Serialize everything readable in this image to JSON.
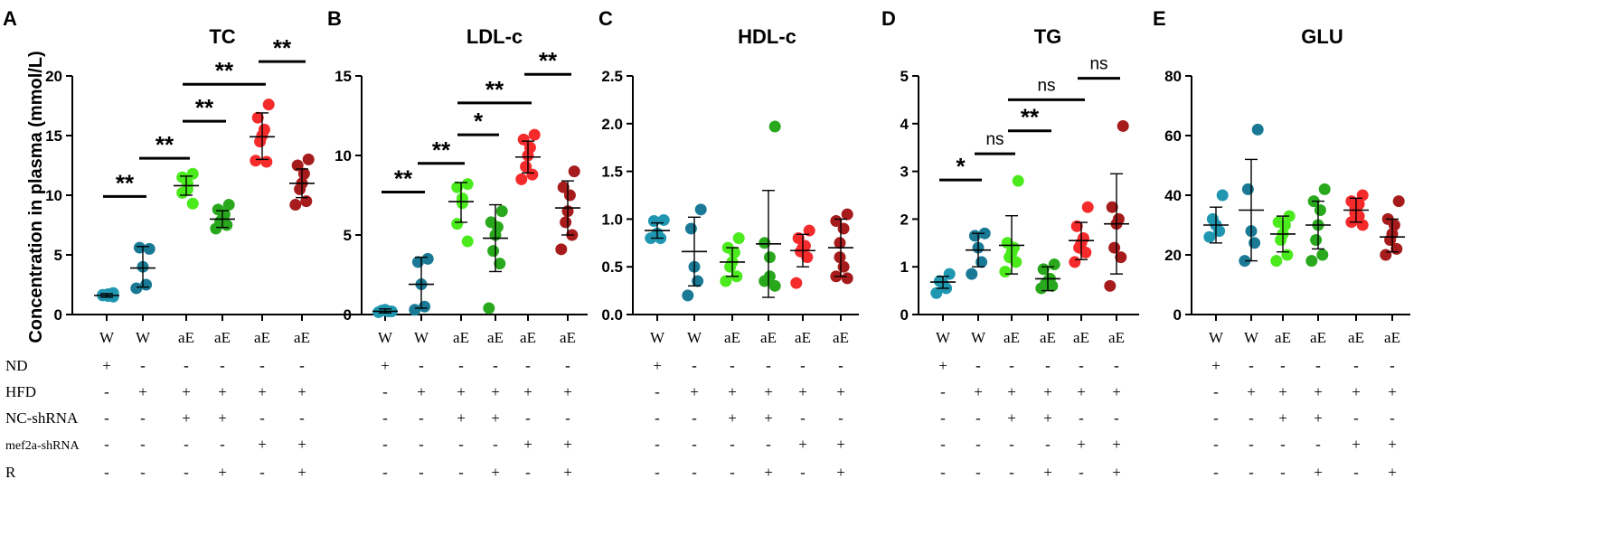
{
  "ylabel": "Concentration in plasma (mmol/L)",
  "categories": [
    "W",
    "W",
    "aE",
    "aE",
    "aE",
    "aE"
  ],
  "colors": [
    "#1f97b1",
    "#1a7a95",
    "#4aea1d",
    "#29a81d",
    "#f52a2a",
    "#a61c1c"
  ],
  "treatment_rows": [
    {
      "label": "ND",
      "symbols": [
        "+",
        "-",
        "-",
        "-",
        "-",
        "-"
      ]
    },
    {
      "label": "HFD",
      "symbols": [
        "-",
        "+",
        "+",
        "+",
        "+",
        "+"
      ]
    },
    {
      "label": "NC-shRNA",
      "symbols": [
        "-",
        "-",
        "+",
        "+",
        "-",
        "-"
      ]
    },
    {
      "label": "mef2a-shRNA",
      "symbols": [
        "-",
        "-",
        "-",
        "-",
        "+",
        "+"
      ]
    },
    {
      "label": "R",
      "symbols": [
        "-",
        "-",
        "-",
        "+",
        "-",
        "+"
      ]
    }
  ],
  "chart_data": [
    {
      "letter": "A",
      "title": "TC",
      "type": "scatter",
      "ylim": [
        0,
        20
      ],
      "yticks": [
        "0",
        "5",
        "10",
        "15",
        "20"
      ],
      "series": [
        {
          "name": "W ND",
          "points": [
            1.5,
            1.6,
            1.7,
            1.55,
            1.65,
            1.8
          ],
          "mean": 1.6,
          "sd": [
            1.45,
            1.75
          ]
        },
        {
          "name": "W HFD",
          "points": [
            5.5,
            5.6,
            4.0,
            2.5,
            2.2
          ],
          "mean": 3.9,
          "sd": [
            2.3,
            5.7
          ]
        },
        {
          "name": "aE NC-shRNA",
          "points": [
            11.8,
            11.5,
            11.0,
            10.5,
            10.2,
            9.3
          ],
          "mean": 10.8,
          "sd": [
            10.0,
            11.6
          ]
        },
        {
          "name": "aE NC-shRNA R",
          "points": [
            9.2,
            8.8,
            8.4,
            8.0,
            7.8,
            7.5,
            7.2
          ],
          "mean": 8.0,
          "sd": [
            7.3,
            8.7
          ]
        },
        {
          "name": "aE mef2a-shRNA",
          "points": [
            17.6,
            16.5,
            15.5,
            15.0,
            14.5,
            12.8,
            12.9
          ],
          "mean": 14.9,
          "sd": [
            13.0,
            16.9
          ]
        },
        {
          "name": "aE mef2a-shRNA R",
          "points": [
            13.0,
            12.5,
            11.8,
            11.0,
            10.5,
            9.5,
            9.2
          ],
          "mean": 11.0,
          "sd": [
            9.8,
            12.2
          ]
        }
      ],
      "comparisons": [
        {
          "from": 0,
          "to": 1,
          "y": 9.9,
          "label": "**"
        },
        {
          "from": 1,
          "to": 2,
          "y": 13.1,
          "label": "**"
        },
        {
          "from": 2,
          "to": 3,
          "y": 16.2,
          "label": "**"
        },
        {
          "from": 2,
          "to": 4,
          "y": 19.3,
          "label": "**"
        },
        {
          "from": 4,
          "to": 5,
          "y": 21.2,
          "label": "**"
        }
      ]
    },
    {
      "letter": "B",
      "title": "LDL-c",
      "type": "scatter",
      "ylim": [
        0,
        15
      ],
      "yticks": [
        "0",
        "5",
        "10",
        "15"
      ],
      "series": [
        {
          "name": "W ND",
          "points": [
            0.2,
            0.25,
            0.3,
            0.2,
            0.15
          ],
          "mean": 0.2,
          "sd": [
            0.1,
            0.35
          ]
        },
        {
          "name": "W HFD",
          "points": [
            3.5,
            3.3,
            1.9,
            0.5,
            0.3
          ],
          "mean": 1.9,
          "sd": [
            0.4,
            3.6
          ]
        },
        {
          "name": "aE NC-shRNA",
          "points": [
            8.2,
            8.0,
            7.3,
            7.0,
            5.7,
            4.6
          ],
          "mean": 7.1,
          "sd": [
            5.8,
            8.3
          ]
        },
        {
          "name": "aE NC-shRNA R",
          "points": [
            6.5,
            5.8,
            5.5,
            5.0,
            4.0,
            3.2,
            0.4
          ],
          "mean": 4.8,
          "sd": [
            2.7,
            6.9
          ]
        },
        {
          "name": "aE mef2a-shRNA",
          "points": [
            11.3,
            11.0,
            10.5,
            10.0,
            9.3,
            8.8,
            8.5
          ],
          "mean": 9.9,
          "sd": [
            8.9,
            10.9
          ]
        },
        {
          "name": "aE mef2a-shRNA R",
          "points": [
            9.0,
            8.0,
            7.5,
            6.5,
            5.8,
            5.0,
            4.1
          ],
          "mean": 6.7,
          "sd": [
            5.0,
            8.4
          ]
        }
      ],
      "comparisons": [
        {
          "from": 0,
          "to": 1,
          "y": 7.7,
          "label": "**"
        },
        {
          "from": 1,
          "to": 2,
          "y": 9.5,
          "label": "**"
        },
        {
          "from": 2,
          "to": 3,
          "y": 11.3,
          "label": "*"
        },
        {
          "from": 2,
          "to": 4,
          "y": 13.3,
          "label": "**"
        },
        {
          "from": 4,
          "to": 5,
          "y": 15.1,
          "label": "**"
        }
      ]
    },
    {
      "letter": "C",
      "title": "HDL-c",
      "type": "scatter",
      "ylim": [
        0,
        2.5
      ],
      "yticks": [
        "0.0",
        "0.5",
        "1.0",
        "1.5",
        "2.0",
        "2.5"
      ],
      "series": [
        {
          "name": "W ND",
          "points": [
            0.99,
            0.98,
            0.85,
            0.8,
            0.8
          ],
          "mean": 0.88,
          "sd": [
            0.8,
            0.96
          ]
        },
        {
          "name": "W HFD",
          "points": [
            1.1,
            0.9,
            0.5,
            0.35,
            0.2
          ],
          "mean": 0.66,
          "sd": [
            0.3,
            1.02
          ]
        },
        {
          "name": "aE NC-shRNA",
          "points": [
            0.8,
            0.7,
            0.65,
            0.55,
            0.5,
            0.4,
            0.35
          ],
          "mean": 0.55,
          "sd": [
            0.4,
            0.7
          ]
        },
        {
          "name": "aE NC-shRNA R",
          "points": [
            1.97,
            0.75,
            0.6,
            0.4,
            0.35,
            0.3
          ],
          "mean": 0.74,
          "sd": [
            0.18,
            1.3
          ]
        },
        {
          "name": "aE mef2a-shRNA",
          "points": [
            0.88,
            0.8,
            0.72,
            0.7,
            0.66,
            0.6,
            0.33
          ],
          "mean": 0.67,
          "sd": [
            0.5,
            0.84
          ]
        },
        {
          "name": "aE mef2a-shRNA R",
          "points": [
            1.05,
            0.98,
            0.9,
            0.75,
            0.6,
            0.5,
            0.4,
            0.38
          ],
          "mean": 0.7,
          "sd": [
            0.4,
            1.0
          ]
        }
      ],
      "comparisons": []
    },
    {
      "letter": "D",
      "title": "TG",
      "type": "scatter",
      "ylim": [
        0,
        5
      ],
      "yticks": [
        "0",
        "1",
        "2",
        "3",
        "4",
        "5"
      ],
      "series": [
        {
          "name": "W ND",
          "points": [
            0.85,
            0.7,
            0.65,
            0.55,
            0.45
          ],
          "mean": 0.68,
          "sd": [
            0.55,
            0.8
          ]
        },
        {
          "name": "W HFD",
          "points": [
            1.7,
            1.65,
            1.4,
            1.1,
            0.85
          ],
          "mean": 1.35,
          "sd": [
            1.0,
            1.7
          ]
        },
        {
          "name": "aE NC-shRNA",
          "points": [
            2.8,
            1.5,
            1.4,
            1.3,
            1.2,
            1.1,
            0.9
          ],
          "mean": 1.45,
          "sd": [
            0.85,
            2.07
          ]
        },
        {
          "name": "aE NC-shRNA R",
          "points": [
            1.05,
            0.95,
            0.75,
            0.7,
            0.65,
            0.6,
            0.55
          ],
          "mean": 0.75,
          "sd": [
            0.5,
            1.0
          ]
        },
        {
          "name": "aE mef2a-shRNA",
          "points": [
            2.25,
            1.85,
            1.6,
            1.5,
            1.4,
            1.3,
            1.1
          ],
          "mean": 1.55,
          "sd": [
            1.15,
            1.93
          ]
        },
        {
          "name": "aE mef2a-shRNA R",
          "points": [
            3.95,
            2.25,
            2.0,
            1.9,
            1.4,
            1.2,
            0.6
          ],
          "mean": 1.9,
          "sd": [
            0.85,
            2.95
          ]
        }
      ],
      "comparisons": [
        {
          "from": 0,
          "to": 1,
          "y": 2.82,
          "label": "*"
        },
        {
          "from": 1,
          "to": 2,
          "y": 3.37,
          "label": "ns"
        },
        {
          "from": 2,
          "to": 3,
          "y": 3.85,
          "label": "**"
        },
        {
          "from": 2,
          "to": 4,
          "y": 4.5,
          "label": "ns"
        },
        {
          "from": 4,
          "to": 5,
          "y": 4.95,
          "label": "ns"
        }
      ]
    },
    {
      "letter": "E",
      "title": "GLU",
      "type": "scatter",
      "ylim": [
        0,
        80
      ],
      "yticks": [
        "0",
        "20",
        "40",
        "60",
        "80"
      ],
      "series": [
        {
          "name": "W ND",
          "points": [
            40,
            32,
            30,
            28,
            26
          ],
          "mean": 30,
          "sd": [
            24,
            36
          ]
        },
        {
          "name": "W HFD",
          "points": [
            62,
            42,
            28,
            24,
            18
          ],
          "mean": 35,
          "sd": [
            18,
            52
          ]
        },
        {
          "name": "aE NC-shRNA",
          "points": [
            33,
            31,
            30,
            27,
            25,
            20,
            18
          ],
          "mean": 27,
          "sd": [
            21,
            33
          ]
        },
        {
          "name": "aE NC-shRNA R",
          "points": [
            42,
            38,
            35,
            30,
            25,
            20,
            18
          ],
          "mean": 30,
          "sd": [
            22,
            38
          ]
        },
        {
          "name": "aE mef2a-shRNA",
          "points": [
            40,
            38,
            37,
            36,
            34,
            33,
            31,
            30
          ],
          "mean": 35,
          "sd": [
            31,
            39
          ]
        },
        {
          "name": "aE mef2a-shRNA R",
          "points": [
            38,
            32,
            30,
            27,
            25,
            22,
            20
          ],
          "mean": 26,
          "sd": [
            21,
            32
          ]
        }
      ],
      "comparisons": []
    }
  ]
}
